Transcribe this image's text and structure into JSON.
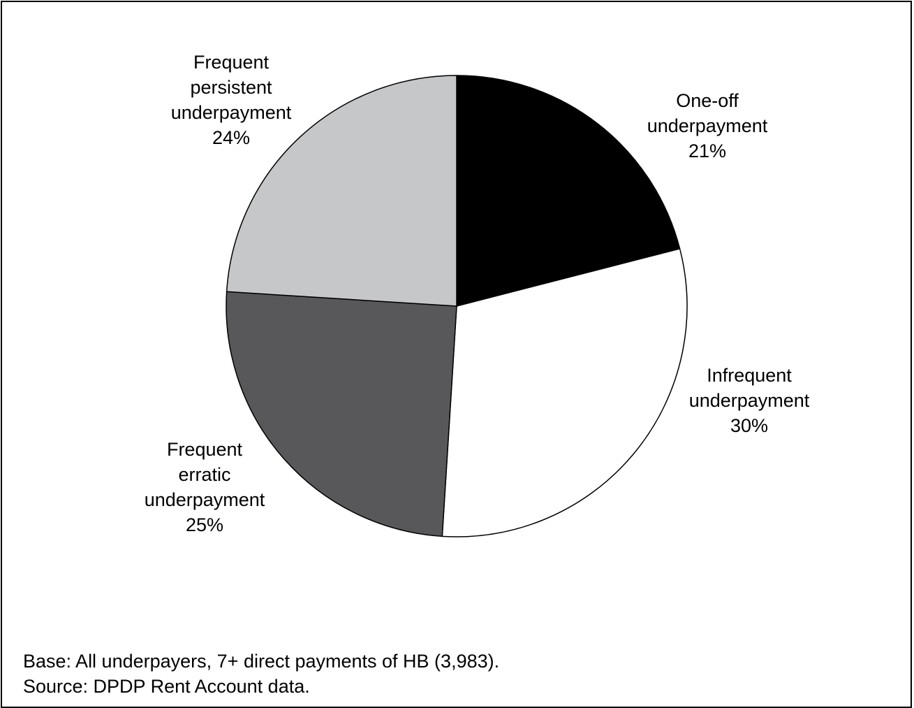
{
  "chart_data": {
    "type": "pie",
    "start_angle_deg": 0,
    "direction": "clockwise",
    "slices": [
      {
        "label_lines": [
          "One-off",
          "underpayment"
        ],
        "value": 21,
        "value_label": "21%",
        "color": "#000000"
      },
      {
        "label_lines": [
          "Infrequent",
          "underpayment"
        ],
        "value": 30,
        "value_label": "30%",
        "color": "#ffffff"
      },
      {
        "label_lines": [
          "Frequent",
          "erratic",
          "underpayment"
        ],
        "value": 25,
        "value_label": "25%",
        "color": "#58585a"
      },
      {
        "label_lines": [
          "Frequent",
          "persistent",
          "underpayment"
        ],
        "value": 24,
        "value_label": "24%",
        "color": "#c6c7c9"
      }
    ]
  },
  "notes": {
    "base": "Base: All underpayers, 7+ direct payments of HB (3,983).",
    "source": "Source: DPDP Rent Account data."
  }
}
